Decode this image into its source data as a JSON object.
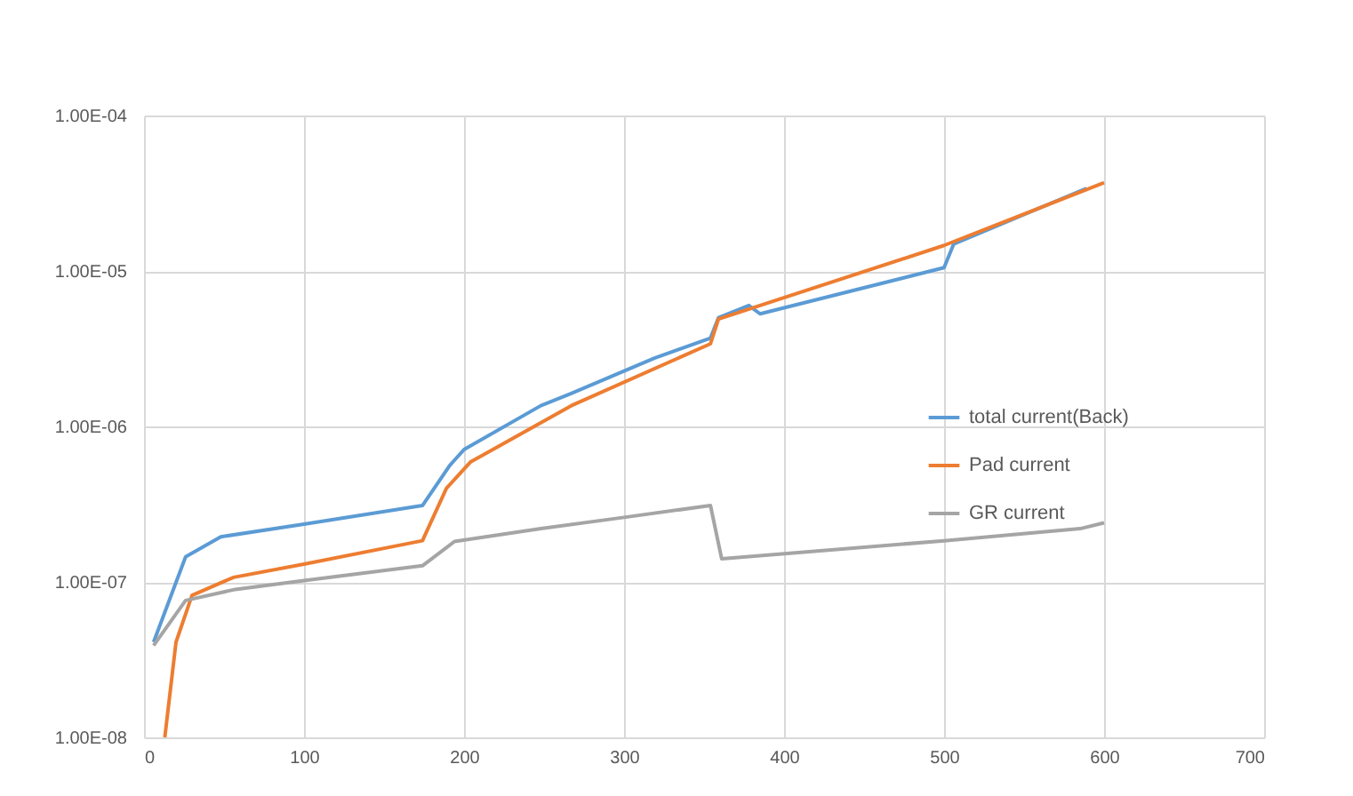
{
  "chart_data": {
    "type": "line",
    "log": "y",
    "grid": true,
    "legend": "right",
    "marker": "none",
    "line_style": "solid",
    "xlim": [
      0,
      700
    ],
    "xticks": [
      0,
      100,
      200,
      300,
      400,
      500,
      600,
      700
    ],
    "ylim": [
      1e-08,
      0.0001
    ],
    "yticks": [
      {
        "value": 1e-08,
        "label": "1.00E-08"
      },
      {
        "value": 1e-07,
        "label": "1.00E-07"
      },
      {
        "value": 1e-06,
        "label": "1.00E-06"
      },
      {
        "value": 1e-05,
        "label": "1.00E-05"
      },
      {
        "value": 0.0001,
        "label": "1.00E-04"
      }
    ],
    "series": [
      {
        "name": "total current(Back)",
        "color": "#5b9bd5",
        "x": [
          6,
          26,
          48,
          100,
          174,
          191,
          200,
          248,
          267,
          319,
          354,
          359,
          378,
          385,
          500,
          506,
          589
        ],
        "values": [
          4.1e-08,
          1.45e-07,
          1.95e-07,
          2.35e-07,
          3.1e-07,
          5.6e-07,
          7.1e-07,
          1.36e-06,
          1.63e-06,
          2.75e-06,
          3.7e-06,
          5e-06,
          6e-06,
          5.3e-06,
          1.05e-05,
          1.49e-05,
          3.4e-05
        ]
      },
      {
        "name": "Pad current",
        "color": "#ed7d31",
        "x": [
          13,
          20,
          30,
          56,
          100,
          174,
          189,
          204,
          267,
          354,
          359,
          500,
          600
        ],
        "values": [
          1e-08,
          4.1e-08,
          8.2e-08,
          1.07e-07,
          1.3e-07,
          1.84e-07,
          4e-07,
          5.9e-07,
          1.36e-06,
          3.4e-06,
          4.9e-06,
          1.46e-05,
          3.7e-05
        ]
      },
      {
        "name": "GR current",
        "color": "#a5a5a5",
        "x": [
          6,
          26,
          56,
          100,
          174,
          194,
          248,
          300,
          354,
          361,
          500,
          585,
          600
        ],
        "values": [
          3.9e-08,
          7.6e-08,
          8.9e-08,
          1.02e-07,
          1.27e-07,
          1.82e-07,
          2.2e-07,
          2.6e-07,
          3.1e-07,
          1.41e-07,
          1.84e-07,
          2.2e-07,
          2.4e-07
        ]
      }
    ]
  }
}
